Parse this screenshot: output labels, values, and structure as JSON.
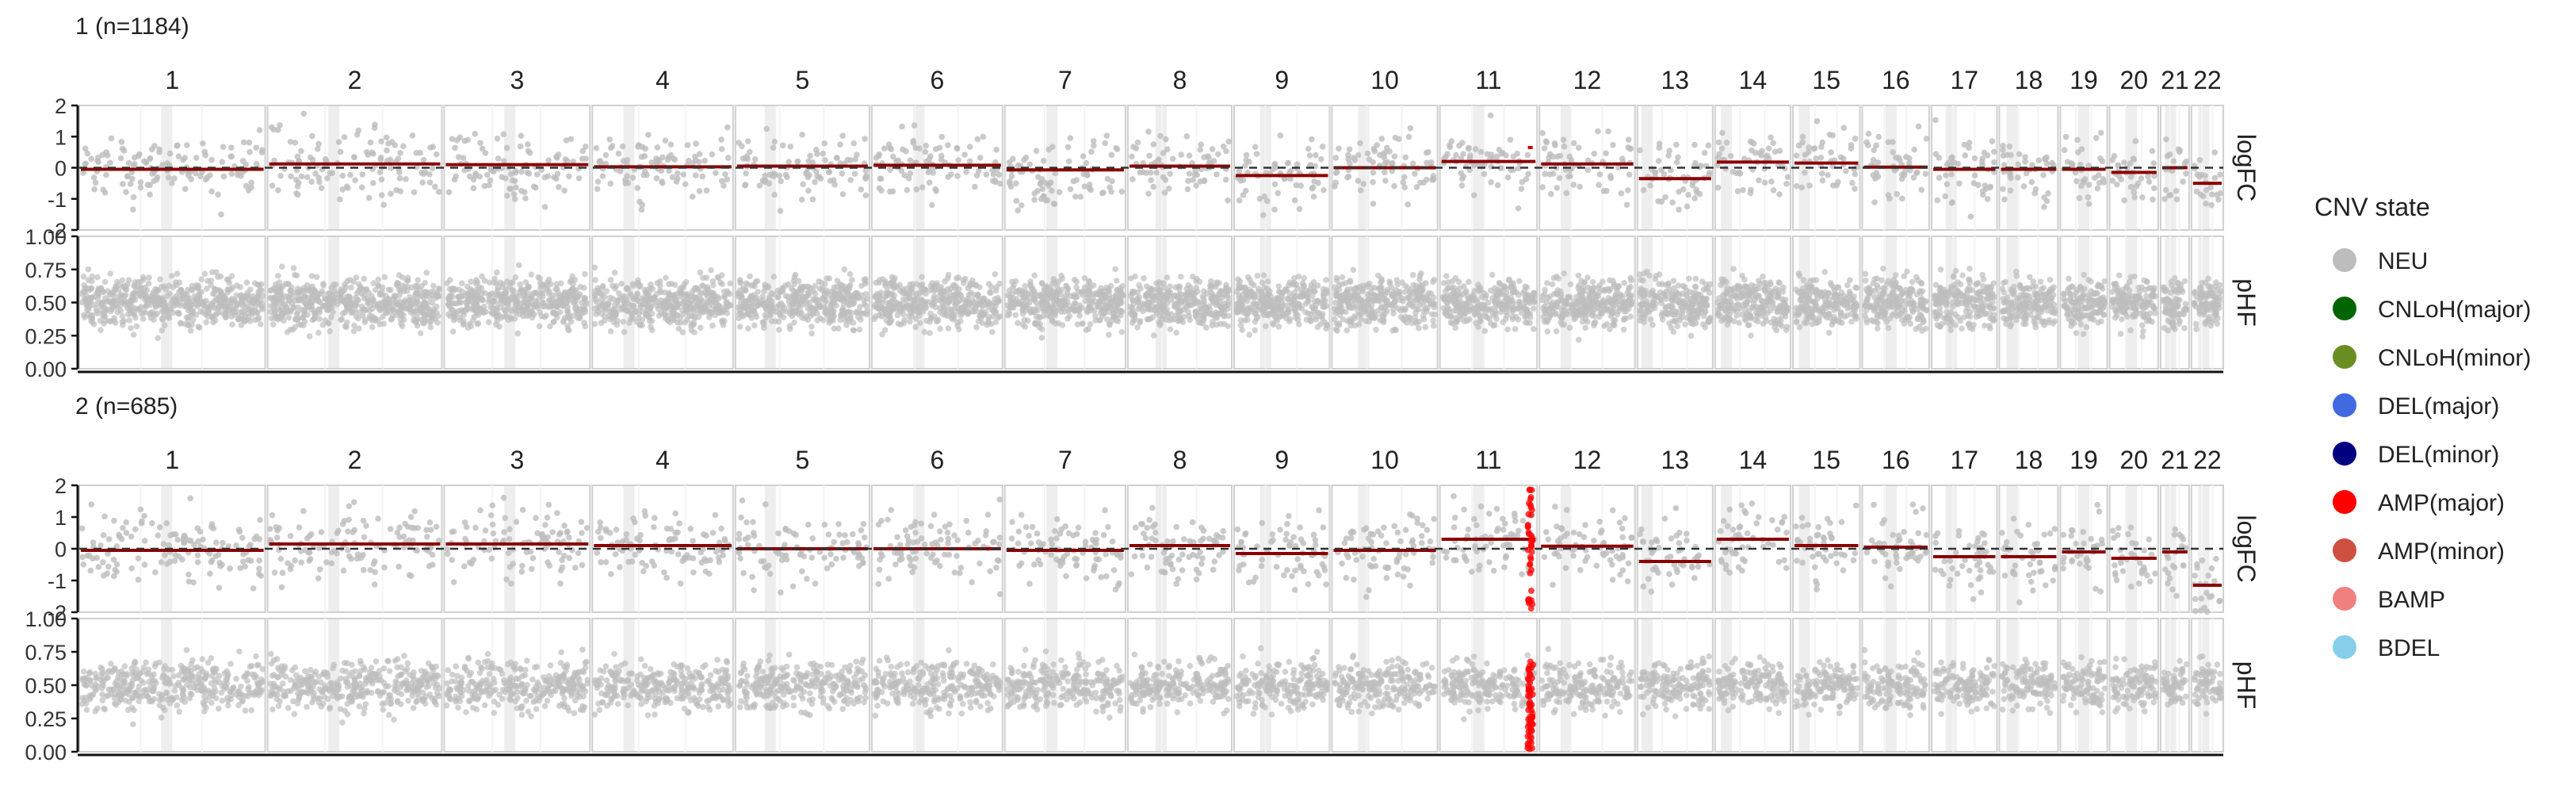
{
  "chart_data": {
    "type": "scatter",
    "title": "",
    "legend": {
      "title": "CNV state",
      "placement": "right",
      "entries": [
        {
          "label": "NEU",
          "color": "#bdbdbd"
        },
        {
          "label": "CNLoH(major)",
          "color": "#006400"
        },
        {
          "label": "CNLoH(minor)",
          "color": "#6b8e23"
        },
        {
          "label": "DEL(major)",
          "color": "#4169e1"
        },
        {
          "label": "DEL(minor)",
          "color": "#000080"
        },
        {
          "label": "AMP(major)",
          "color": "#ff0000"
        },
        {
          "label": "AMP(minor)",
          "color": "#cd5040"
        },
        {
          "label": "BAMP",
          "color": "#f08080"
        },
        {
          "label": "BDEL",
          "color": "#87ceeb"
        }
      ]
    },
    "chromosomes": [
      "1",
      "2",
      "3",
      "4",
      "5",
      "6",
      "7",
      "8",
      "9",
      "10",
      "11",
      "12",
      "13",
      "14",
      "15",
      "16",
      "17",
      "18",
      "19",
      "20",
      "21",
      "22"
    ],
    "chromosome_relative_widths": [
      111,
      104,
      87,
      84,
      80,
      78,
      72,
      62,
      57,
      63,
      58,
      57,
      45,
      45,
      40,
      40,
      39,
      35,
      28,
      29,
      17,
      19
    ],
    "centromere_positions": [
      0.47,
      0.38,
      0.45,
      0.26,
      0.26,
      0.36,
      0.39,
      0.32,
      0.33,
      0.3,
      0.4,
      0.28,
      0.13,
      0.15,
      0.17,
      0.43,
      0.3,
      0.22,
      0.5,
      0.45,
      0.35,
      0.39
    ],
    "facet_labels": [
      "logFC",
      "pHF"
    ],
    "logFC_axis": {
      "ylim": [
        -2,
        2
      ],
      "ticks": [
        "2",
        "1",
        "0",
        "-1",
        "-2"
      ],
      "reference_line": 0
    },
    "pHF_axis": {
      "ylim": [
        0,
        1
      ],
      "ticks": [
        "1.00",
        "0.75",
        "0.50",
        "0.25",
        "0.00"
      ]
    },
    "point_color": "#bdbdbd",
    "segment_color": "#8b0000",
    "clones": [
      {
        "label": "1 (n=1184)",
        "segment_logFC": [
          -0.05,
          0.12,
          0.1,
          0.03,
          0.05,
          0.08,
          -0.07,
          0.05,
          -0.25,
          0.0,
          0.2,
          0.12,
          -0.35,
          0.18,
          0.15,
          0.02,
          -0.05,
          -0.05,
          -0.05,
          -0.15,
          0.0,
          -0.5
        ],
        "events": [
          {
            "chromosome": "11",
            "relative_position": 0.93,
            "state": "NEU",
            "logFC": 0.65
          }
        ]
      },
      {
        "label": "2 (n=685)",
        "segment_logFC": [
          -0.05,
          0.15,
          0.15,
          0.1,
          0.0,
          0.0,
          -0.05,
          0.1,
          -0.15,
          -0.05,
          0.3,
          0.08,
          -0.4,
          0.3,
          0.1,
          0.05,
          -0.25,
          -0.25,
          -0.1,
          -0.3,
          -0.1,
          -1.15
        ],
        "events": [
          {
            "chromosome": "11",
            "relative_position": 0.93,
            "state": "AMP(major)",
            "logFC_range": [
              -1.9,
              1.9
            ],
            "pHF_range": [
              0.02,
              0.68
            ]
          }
        ]
      }
    ]
  }
}
